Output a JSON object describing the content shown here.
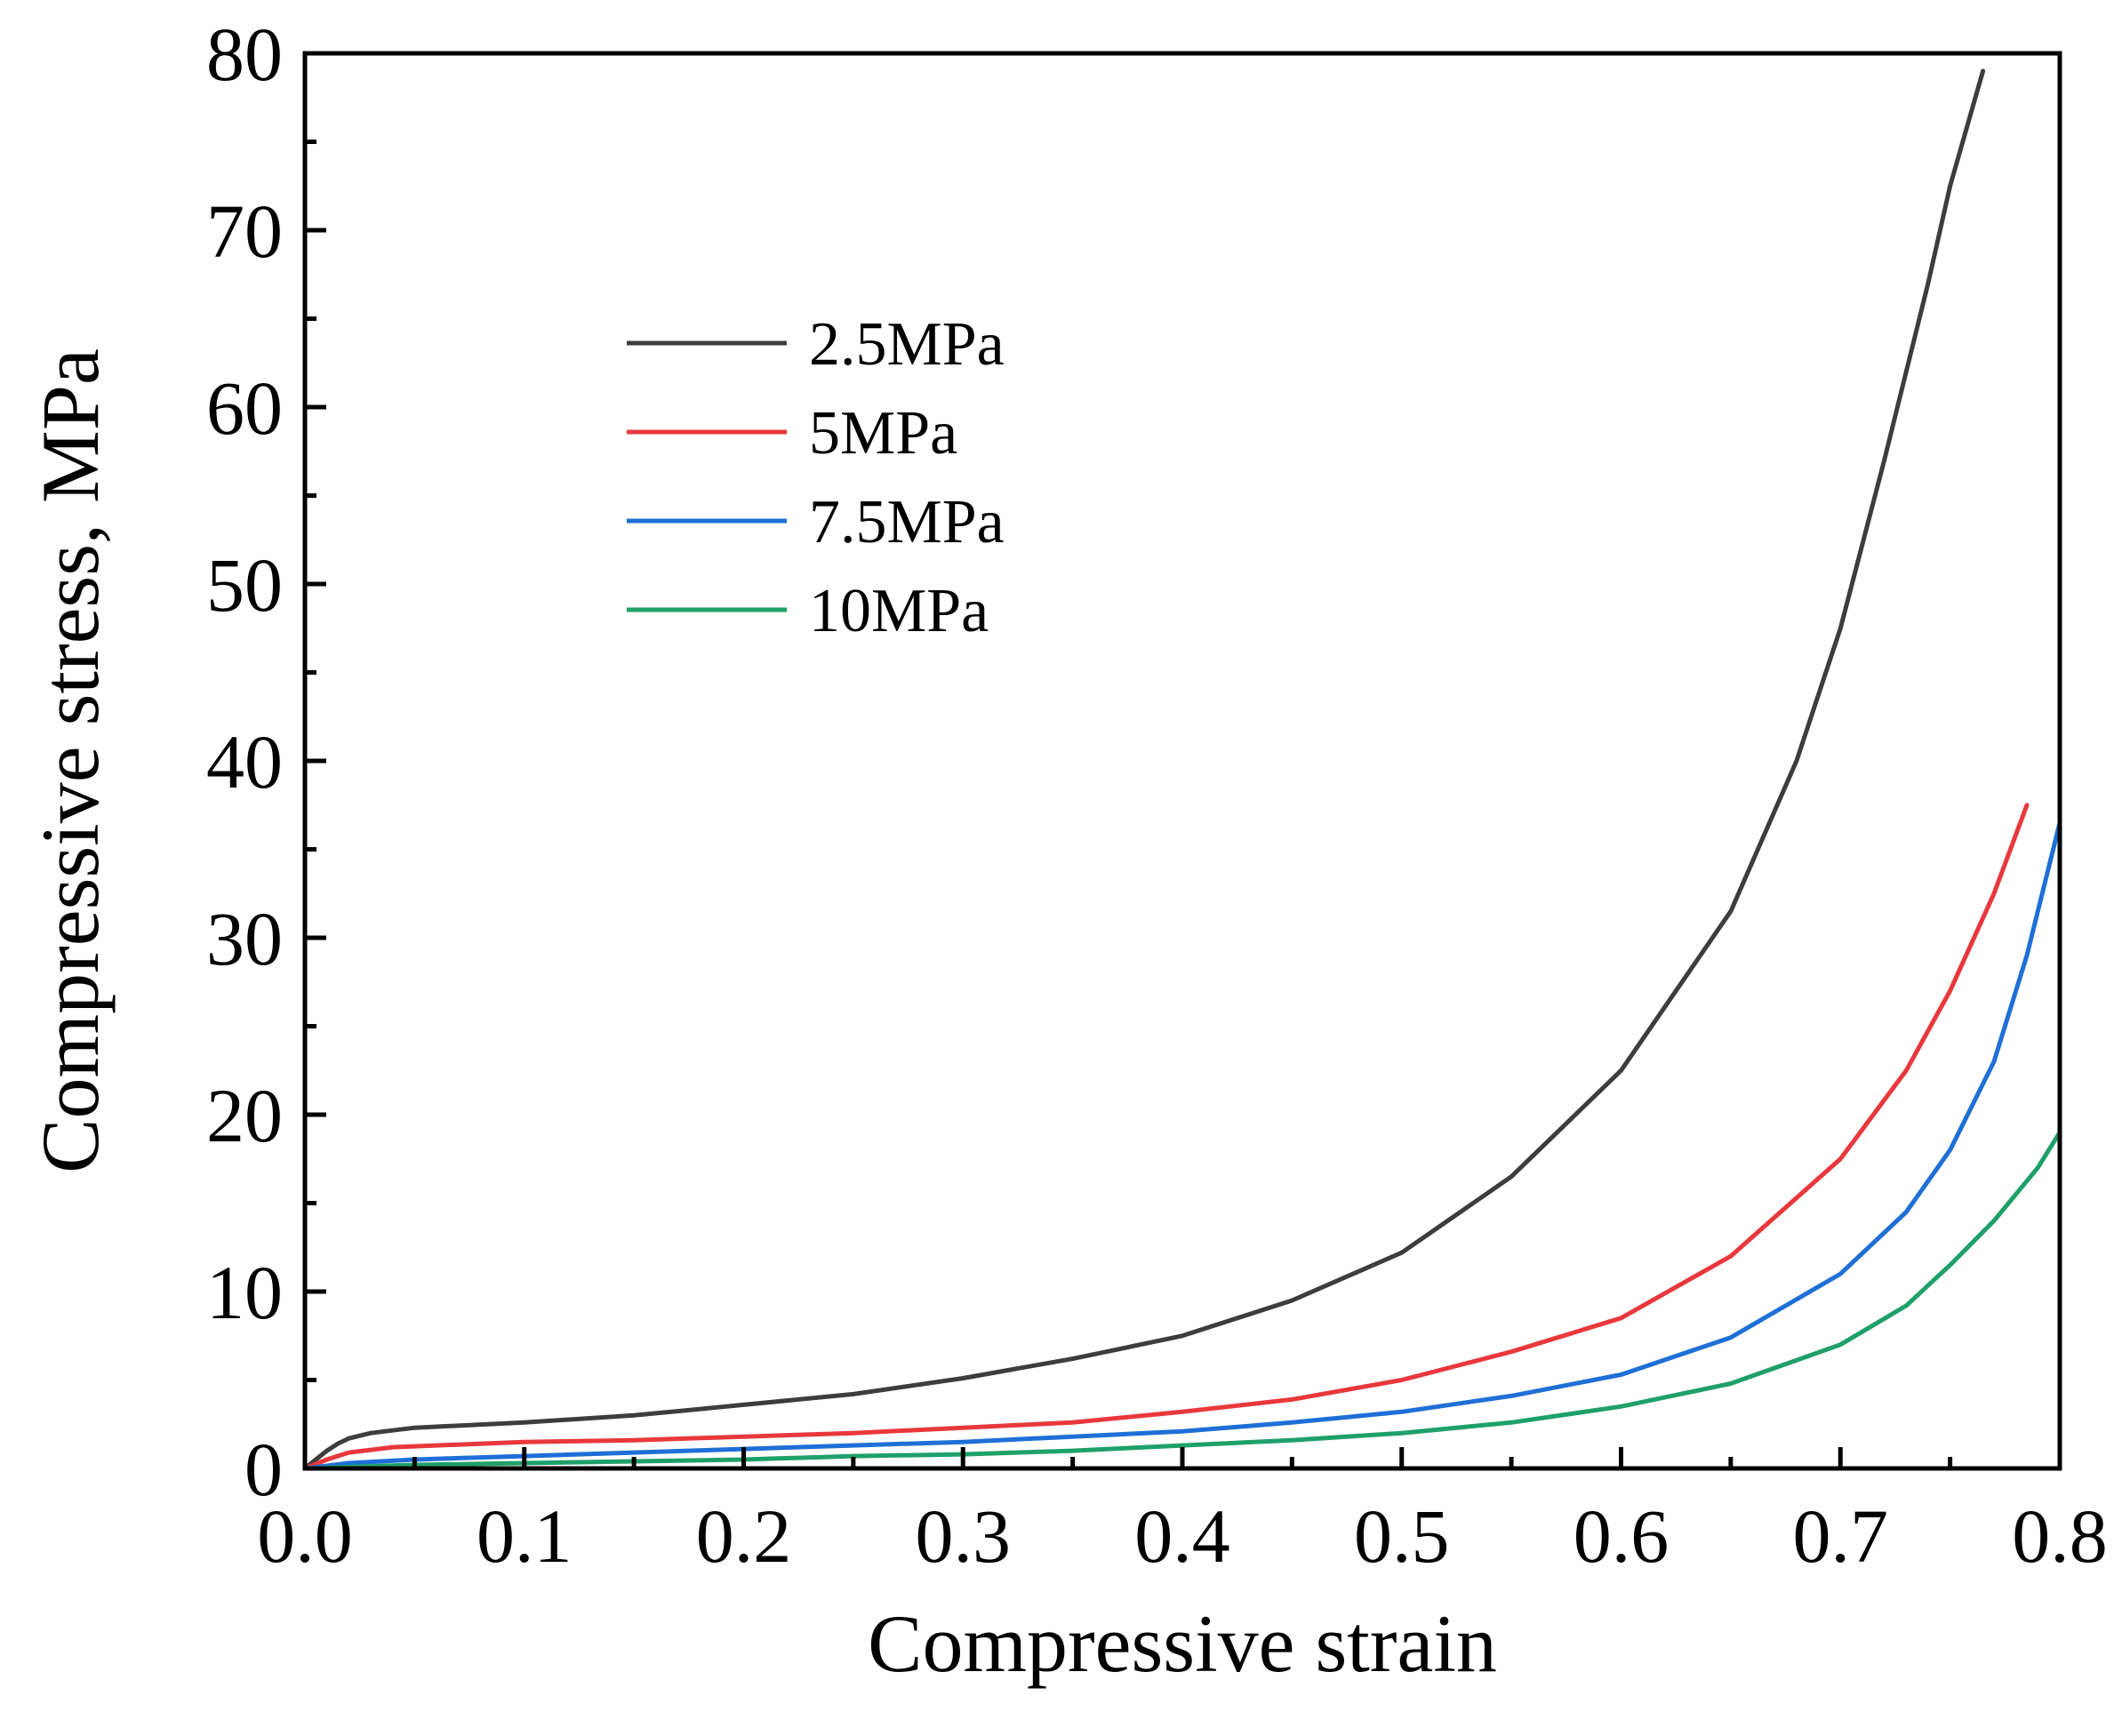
{
  "chart_data": {
    "type": "line",
    "title": "",
    "xlabel": "Compressive strain",
    "ylabel": "Compressive stress, MPa",
    "xlim": [
      0.0,
      0.8
    ],
    "ylim": [
      0,
      80
    ],
    "xticks": [
      "0.0",
      "0.1",
      "0.2",
      "0.3",
      "0.4",
      "0.5",
      "0.6",
      "0.7",
      "0.8"
    ],
    "yticks": [
      "0",
      "10",
      "20",
      "30",
      "40",
      "50",
      "60",
      "70",
      "80"
    ],
    "grid": false,
    "legend_position": "upper-left",
    "series": [
      {
        "name": "2.5MPa",
        "color": "#3d3d3d",
        "x": [
          0.0,
          0.005,
          0.01,
          0.015,
          0.02,
          0.03,
          0.05,
          0.1,
          0.15,
          0.2,
          0.25,
          0.3,
          0.35,
          0.4,
          0.45,
          0.5,
          0.55,
          0.6,
          0.65,
          0.68,
          0.7,
          0.72,
          0.74,
          0.75,
          0.765
        ],
        "y": [
          0.0,
          0.5,
          1.0,
          1.4,
          1.7,
          2.0,
          2.3,
          2.6,
          3.0,
          3.6,
          4.2,
          5.1,
          6.2,
          7.5,
          9.5,
          12.2,
          16.5,
          22.5,
          31.5,
          40.0,
          47.5,
          57.0,
          67.0,
          72.5,
          79.0
        ]
      },
      {
        "name": "5MPa",
        "color": "#e8383d",
        "x": [
          0.0,
          0.01,
          0.02,
          0.04,
          0.1,
          0.15,
          0.2,
          0.25,
          0.3,
          0.35,
          0.4,
          0.45,
          0.5,
          0.55,
          0.6,
          0.65,
          0.7,
          0.73,
          0.75,
          0.77,
          0.785
        ],
        "y": [
          0.0,
          0.5,
          0.9,
          1.2,
          1.5,
          1.6,
          1.8,
          2.0,
          2.3,
          2.6,
          3.2,
          3.9,
          5.0,
          6.6,
          8.5,
          12.0,
          17.5,
          22.5,
          27.0,
          32.5,
          37.5
        ]
      },
      {
        "name": "7.5MPa",
        "color": "#1f6fd6",
        "x": [
          0.0,
          0.02,
          0.05,
          0.1,
          0.15,
          0.2,
          0.25,
          0.3,
          0.35,
          0.4,
          0.45,
          0.5,
          0.55,
          0.6,
          0.65,
          0.7,
          0.73,
          0.75,
          0.77,
          0.785,
          0.8
        ],
        "y": [
          0.0,
          0.3,
          0.5,
          0.7,
          0.9,
          1.1,
          1.3,
          1.5,
          1.8,
          2.1,
          2.6,
          3.2,
          4.1,
          5.3,
          7.4,
          11.0,
          14.5,
          18.0,
          23.0,
          29.0,
          36.5
        ]
      },
      {
        "name": "10MPa",
        "color": "#1fa06a",
        "x": [
          0.0,
          0.05,
          0.1,
          0.15,
          0.2,
          0.25,
          0.3,
          0.35,
          0.4,
          0.45,
          0.5,
          0.55,
          0.6,
          0.65,
          0.7,
          0.73,
          0.75,
          0.77,
          0.79,
          0.8
        ],
        "y": [
          0.0,
          0.2,
          0.3,
          0.4,
          0.5,
          0.7,
          0.8,
          1.0,
          1.3,
          1.6,
          2.0,
          2.6,
          3.5,
          4.8,
          7.0,
          9.2,
          11.5,
          14.0,
          17.0,
          19.0
        ]
      }
    ]
  }
}
